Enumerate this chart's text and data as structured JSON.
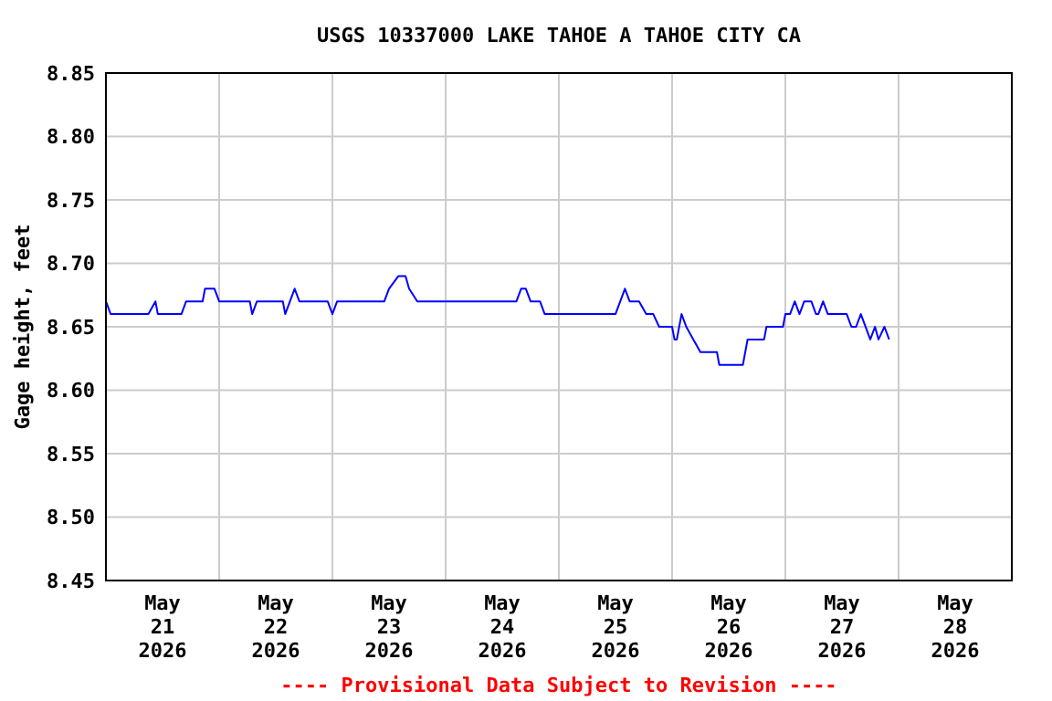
{
  "chart_data": {
    "type": "line",
    "title": "USGS 10337000 LAKE TAHOE A TAHOE CITY CA",
    "ylabel": "Gage height, feet",
    "annotations": [
      "---- Provisional Data Subject to Revision ----"
    ],
    "xlim": [
      "2026-05-21T00:00",
      "2026-05-29T00:00"
    ],
    "xticks": [
      {
        "value": "2026-05-21T00:00",
        "label": null
      },
      {
        "value": "2026-05-21T12:00",
        "label": "May 21 2026"
      },
      {
        "value": "2026-05-22T00:00",
        "label": null
      },
      {
        "value": "2026-05-22T12:00",
        "label": "May 22 2026"
      },
      {
        "value": "2026-05-23T00:00",
        "label": null
      },
      {
        "value": "2026-05-23T12:00",
        "label": "May 23 2026"
      },
      {
        "value": "2026-05-24T00:00",
        "label": null
      },
      {
        "value": "2026-05-24T12:00",
        "label": "May 24 2026"
      },
      {
        "value": "2026-05-25T00:00",
        "label": null
      },
      {
        "value": "2026-05-25T12:00",
        "label": "May 25 2026"
      },
      {
        "value": "2026-05-26T00:00",
        "label": null
      },
      {
        "value": "2026-05-26T12:00",
        "label": "May 26 2026"
      },
      {
        "value": "2026-05-27T00:00",
        "label": null
      },
      {
        "value": "2026-05-27T12:00",
        "label": "May 27 2026"
      },
      {
        "value": "2026-05-28T00:00",
        "label": null
      },
      {
        "value": "2026-05-28T12:00",
        "label": "May 28 2026"
      },
      {
        "value": "2026-05-29T00:00",
        "label": null
      }
    ],
    "ylim": [
      8.45,
      8.85
    ],
    "yticks": [
      8.45,
      {
        "value": 8.5,
        "label": "8.50"
      },
      8.55,
      {
        "value": 8.6,
        "label": "8.60"
      },
      8.65,
      {
        "value": 8.7,
        "label": "8.70"
      },
      8.75,
      {
        "value": 8.8,
        "label": "8.80"
      },
      8.85
    ],
    "grid": true,
    "marker": "none",
    "line_style": "solid",
    "series": [
      {
        "color": "#0000ff",
        "x": [
          "2026-05-21T00:00",
          "2026-05-21T01:00",
          "2026-05-21T09:00",
          "2026-05-21T10:30",
          "2026-05-21T11:00",
          "2026-05-21T16:00",
          "2026-05-21T17:00",
          "2026-05-21T20:30",
          "2026-05-21T21:00",
          "2026-05-21T23:00",
          "2026-05-22T00:00",
          "2026-05-22T06:30",
          "2026-05-22T07:00",
          "2026-05-22T08:00",
          "2026-05-22T13:30",
          "2026-05-22T14:00",
          "2026-05-22T16:00",
          "2026-05-22T17:00",
          "2026-05-22T23:00",
          "2026-05-23T00:00",
          "2026-05-23T01:00",
          "2026-05-23T11:00",
          "2026-05-23T12:00",
          "2026-05-23T14:00",
          "2026-05-23T15:30",
          "2026-05-23T16:15",
          "2026-05-23T18:00",
          "2026-05-24T15:00",
          "2026-05-24T16:00",
          "2026-05-24T17:00",
          "2026-05-24T18:00",
          "2026-05-24T20:00",
          "2026-05-24T21:00",
          "2026-05-25T12:00",
          "2026-05-25T14:00",
          "2026-05-25T15:00",
          "2026-05-25T17:00",
          "2026-05-25T18:30",
          "2026-05-25T20:00",
          "2026-05-25T21:15",
          "2026-05-26T00:00",
          "2026-05-26T00:30",
          "2026-05-26T01:00",
          "2026-05-26T02:00",
          "2026-05-26T03:00",
          "2026-05-26T04:30",
          "2026-05-26T06:00",
          "2026-05-26T09:30",
          "2026-05-26T10:00",
          "2026-05-26T15:00",
          "2026-05-26T16:00",
          "2026-05-26T19:30",
          "2026-05-26T20:00",
          "2026-05-26T23:30",
          "2026-05-27T00:00",
          "2026-05-27T01:00",
          "2026-05-27T02:00",
          "2026-05-27T03:00",
          "2026-05-27T04:00",
          "2026-05-27T05:30",
          "2026-05-27T06:30",
          "2026-05-27T07:00",
          "2026-05-27T08:00",
          "2026-05-27T09:00",
          "2026-05-27T13:00",
          "2026-05-27T14:00",
          "2026-05-27T15:00",
          "2026-05-27T16:00",
          "2026-05-27T18:00",
          "2026-05-27T19:00",
          "2026-05-27T19:45",
          "2026-05-27T21:00",
          "2026-05-27T22:00"
        ],
        "values": [
          8.67,
          8.66,
          8.66,
          8.67,
          8.66,
          8.66,
          8.67,
          8.67,
          8.68,
          8.68,
          8.67,
          8.67,
          8.66,
          8.67,
          8.67,
          8.66,
          8.68,
          8.67,
          8.67,
          8.66,
          8.67,
          8.67,
          8.68,
          8.69,
          8.69,
          8.68,
          8.67,
          8.67,
          8.68,
          8.68,
          8.67,
          8.67,
          8.66,
          8.66,
          8.68,
          8.67,
          8.67,
          8.66,
          8.66,
          8.65,
          8.65,
          8.64,
          8.64,
          8.66,
          8.65,
          8.64,
          8.63,
          8.63,
          8.62,
          8.62,
          8.64,
          8.64,
          8.65,
          8.65,
          8.66,
          8.66,
          8.67,
          8.66,
          8.67,
          8.67,
          8.66,
          8.66,
          8.67,
          8.66,
          8.66,
          8.65,
          8.65,
          8.66,
          8.64,
          8.65,
          8.64,
          8.65,
          8.64
        ]
      }
    ]
  }
}
